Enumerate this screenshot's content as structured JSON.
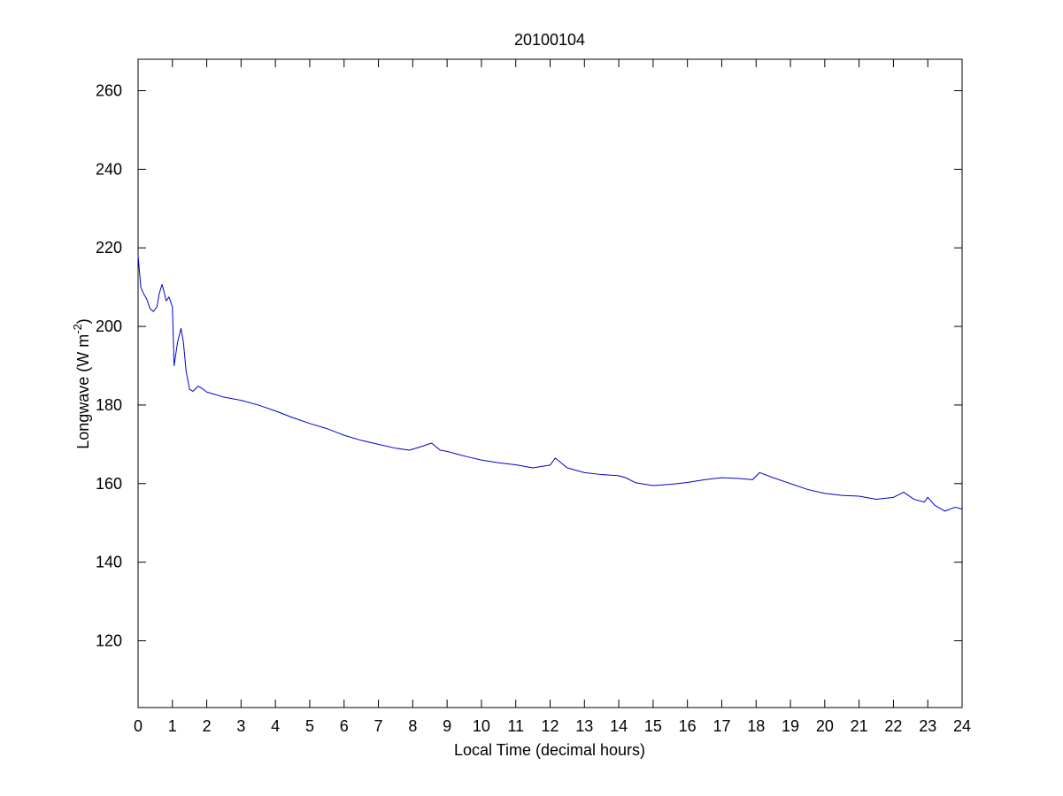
{
  "chart_data": {
    "type": "line",
    "title": "20100104",
    "xlabel": "Local Time (decimal hours)",
    "ylabel": {
      "text": "Longwave (W m",
      "superscript": "-2",
      "suffix": ")"
    },
    "xlim": [
      0,
      24
    ],
    "ylim": [
      103,
      268
    ],
    "xticks": [
      0,
      1,
      2,
      3,
      4,
      5,
      6,
      7,
      8,
      9,
      10,
      11,
      12,
      13,
      14,
      15,
      16,
      17,
      18,
      19,
      20,
      21,
      22,
      23,
      24
    ],
    "yticks": [
      120,
      140,
      160,
      180,
      200,
      220,
      240,
      260
    ],
    "grid": false,
    "legend": "none",
    "series": [
      {
        "color": "#0000cc",
        "x": [
          0,
          0.08,
          0.15,
          0.25,
          0.35,
          0.45,
          0.55,
          0.62,
          0.7,
          0.75,
          0.82,
          0.9,
          1.0,
          1.05,
          1.1,
          1.15,
          1.25,
          1.32,
          1.4,
          1.5,
          1.6,
          1.75,
          1.9,
          2.0,
          2.2,
          2.5,
          3.0,
          3.5,
          4.0,
          4.5,
          5.0,
          5.5,
          6.0,
          6.5,
          7.0,
          7.5,
          7.9,
          8.2,
          8.55,
          8.8,
          9.0,
          9.3,
          9.6,
          10.0,
          10.5,
          11.0,
          11.5,
          12.0,
          12.15,
          12.5,
          13.0,
          13.5,
          14.0,
          14.2,
          14.5,
          15.0,
          15.5,
          16.0,
          16.5,
          17.0,
          17.5,
          17.9,
          18.1,
          18.5,
          19.0,
          19.5,
          20.0,
          20.5,
          21.0,
          21.5,
          22.0,
          22.3,
          22.6,
          22.9,
          23.0,
          23.2,
          23.5,
          23.8,
          24.0
        ],
        "y": [
          218,
          210,
          208.5,
          207,
          204.5,
          203.8,
          205,
          208.5,
          210.7,
          209,
          206.5,
          207.5,
          205,
          190,
          193,
          196,
          199.5,
          196,
          188.5,
          184,
          183.5,
          184.8,
          184,
          183.3,
          182.8,
          182,
          181.2,
          180,
          178.5,
          176.8,
          175.3,
          174,
          172.3,
          171,
          170,
          169,
          168.5,
          169.3,
          170.3,
          168.5,
          168.2,
          167.5,
          166.8,
          166,
          165.3,
          164.8,
          164,
          164.7,
          166.5,
          164,
          162.8,
          162.3,
          162,
          161.5,
          160.2,
          159.5,
          159.8,
          160.3,
          161,
          161.5,
          161.3,
          161,
          162.8,
          161.5,
          160,
          158.5,
          157.5,
          157,
          156.8,
          156,
          156.5,
          157.8,
          156,
          155.3,
          156.5,
          154.5,
          153,
          154,
          153.5
        ]
      }
    ]
  }
}
